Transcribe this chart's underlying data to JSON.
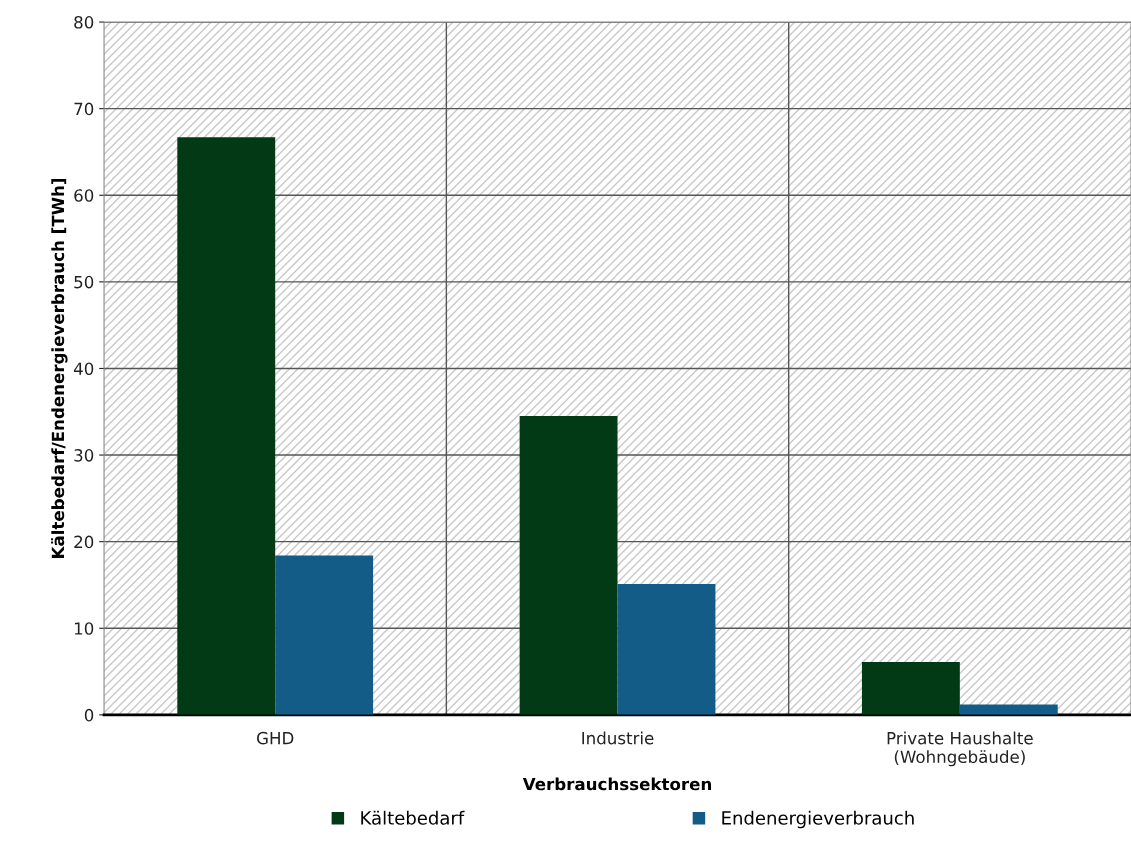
{
  "chart_data": {
    "type": "bar",
    "xlabel": "Verbrauchssektoren",
    "ylabel": "Kältebedarf/Endenergieverbrauch [TWh]",
    "categories": [
      "GHD",
      "Industrie",
      "Private Haushalte\n(Wohngebäude)"
    ],
    "series": [
      {
        "name": "Kältebedarf",
        "color": "#023a16",
        "values": [
          66.7,
          34.5,
          6.1
        ]
      },
      {
        "name": "Endenergieverbrauch",
        "color": "#135c87",
        "values": [
          18.4,
          15.1,
          1.2
        ]
      }
    ],
    "ylim": [
      0,
      80
    ],
    "yticks": [
      0,
      10,
      20,
      30,
      40,
      50,
      60,
      70,
      80
    ],
    "grid": true,
    "legend": "bottom"
  }
}
